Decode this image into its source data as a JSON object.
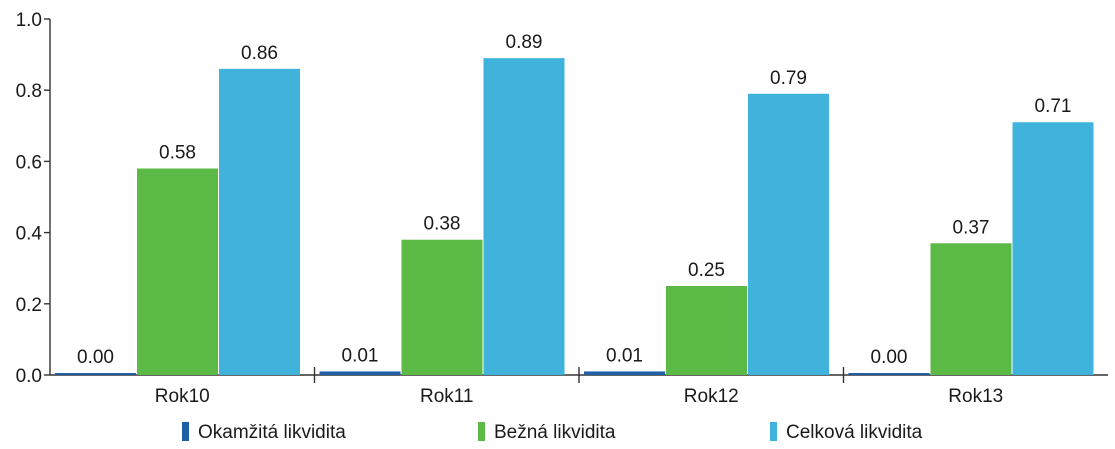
{
  "chart_data": {
    "type": "bar",
    "title": "",
    "xlabel": "",
    "ylabel": "",
    "categories": [
      "Rok10",
      "Rok11",
      "Rok12",
      "Rok13"
    ],
    "series": [
      {
        "name": "Okamžitá likvidita",
        "color": "#1f5fa8",
        "values": [
          0.0,
          0.01,
          0.01,
          0.0
        ],
        "labels": [
          "0.00",
          "0.01",
          "0.01",
          "0.00"
        ]
      },
      {
        "name": "Bežná likvidita",
        "color": "#5bb946",
        "values": [
          0.58,
          0.38,
          0.25,
          0.37
        ],
        "labels": [
          "0.58",
          "0.38",
          "0.25",
          "0.37"
        ]
      },
      {
        "name": "Celková likvidita",
        "color": "#3fb3dc",
        "values": [
          0.86,
          0.89,
          0.79,
          0.71
        ],
        "labels": [
          "0.86",
          "0.89",
          "0.79",
          "0.71"
        ]
      }
    ],
    "ylim": [
      0,
      1.0
    ],
    "yticks": [
      0.0,
      0.2,
      0.4,
      0.6,
      0.8,
      1.0
    ],
    "ytick_labels": [
      "0.0",
      "0.2",
      "0.4",
      "0.6",
      "0.8",
      "1.0"
    ],
    "grid": false,
    "legend_position": "bottom"
  }
}
